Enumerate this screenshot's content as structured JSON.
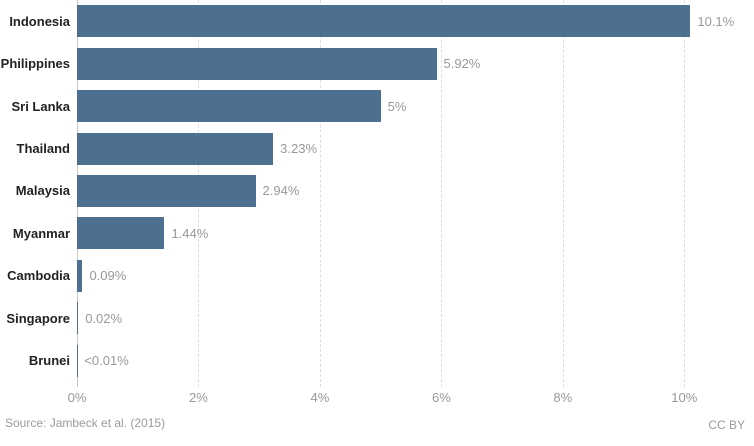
{
  "chart_data": {
    "type": "bar",
    "orientation": "horizontal",
    "title": "",
    "xlabel": "",
    "ylabel": "",
    "categories": [
      "Indonesia",
      "Philippines",
      "Sri Lanka",
      "Thailand",
      "Malaysia",
      "Myanmar",
      "Cambodia",
      "Singapore",
      "Brunei"
    ],
    "values": [
      10.1,
      5.92,
      5,
      3.23,
      2.94,
      1.44,
      0.09,
      0.02,
      0.005
    ],
    "value_labels": [
      "10.1%",
      "5.92%",
      "5%",
      "3.23%",
      "2.94%",
      "1.44%",
      "0.09%",
      "0.02%",
      "<0.01%"
    ],
    "x_ticks": [
      {
        "value": 0,
        "label": "0%"
      },
      {
        "value": 2,
        "label": "2%"
      },
      {
        "value": 4,
        "label": "4%"
      },
      {
        "value": 6,
        "label": "6%"
      },
      {
        "value": 8,
        "label": "8%"
      },
      {
        "value": 10,
        "label": "10%"
      }
    ],
    "xlim": [
      0,
      11
    ],
    "grid": "vertical-dashed",
    "legend": "none",
    "colors": {
      "bar": "#4d7090",
      "category_label": "#222222",
      "value_label": "#999999",
      "tick_label": "#999999",
      "gridline": "#dcdcdc",
      "zero_line": "#c9c9c9"
    }
  },
  "footer": {
    "source": "Source: Jambeck et al. (2015)",
    "license": "CC BY"
  }
}
